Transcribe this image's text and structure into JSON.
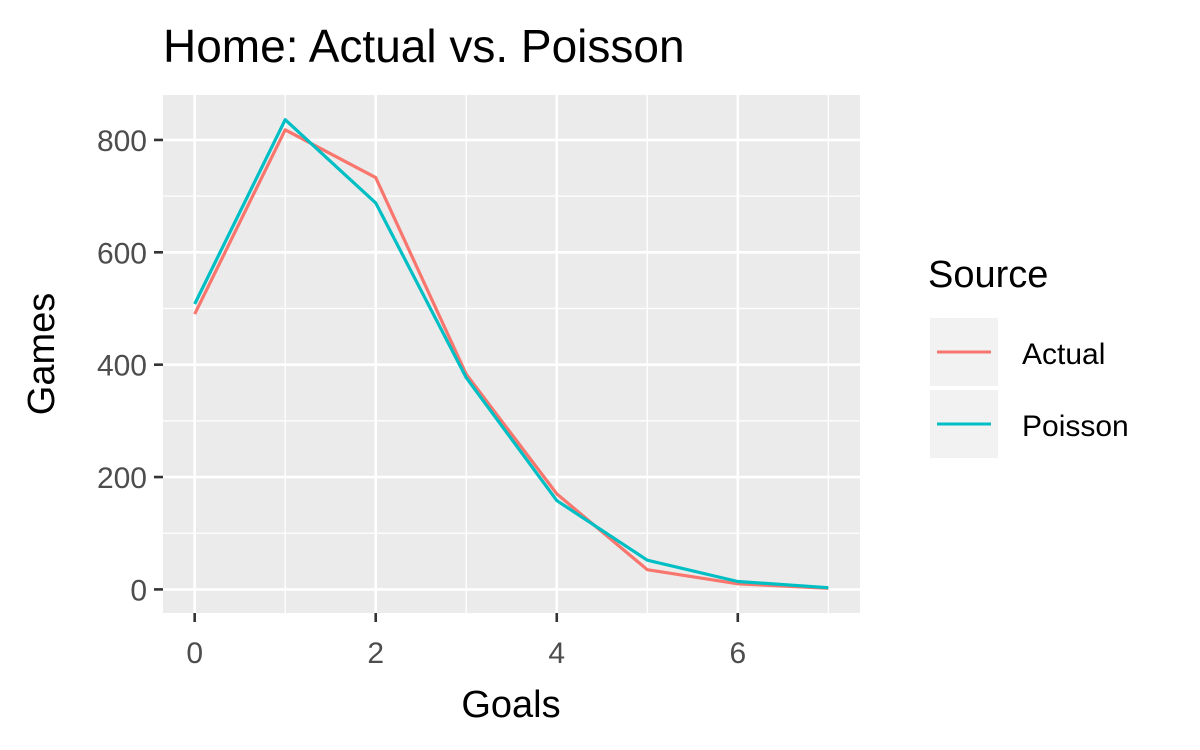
{
  "chart_data": {
    "type": "line",
    "title": "Home: Actual vs. Poisson",
    "xlabel": "Goals",
    "ylabel": "Games",
    "xlim": [
      -0.35,
      7.35
    ],
    "ylim": [
      -42,
      880
    ],
    "x_ticks": [
      0,
      2,
      4,
      6
    ],
    "x_minor": [
      1,
      3,
      5,
      7
    ],
    "y_ticks": [
      0,
      200,
      400,
      600,
      800
    ],
    "y_minor": [
      100,
      300,
      500,
      700
    ],
    "x_tick_labels": [
      "0",
      "2",
      "4",
      "6"
    ],
    "y_tick_labels": [
      "0",
      "200",
      "400",
      "600",
      "800"
    ],
    "grid": true,
    "legend": {
      "title": "Source",
      "position": "right",
      "entries": [
        "Actual",
        "Poisson"
      ]
    },
    "x": [
      0,
      1,
      2,
      3,
      4,
      5,
      6,
      7
    ],
    "series": [
      {
        "name": "Actual",
        "color": "#F8766D",
        "values": [
          490,
          818,
          733,
          383,
          170,
          35,
          10,
          2
        ]
      },
      {
        "name": "Poisson",
        "color": "#00BFC4",
        "values": [
          508,
          836,
          688,
          377,
          158,
          52,
          14,
          3
        ]
      }
    ]
  }
}
